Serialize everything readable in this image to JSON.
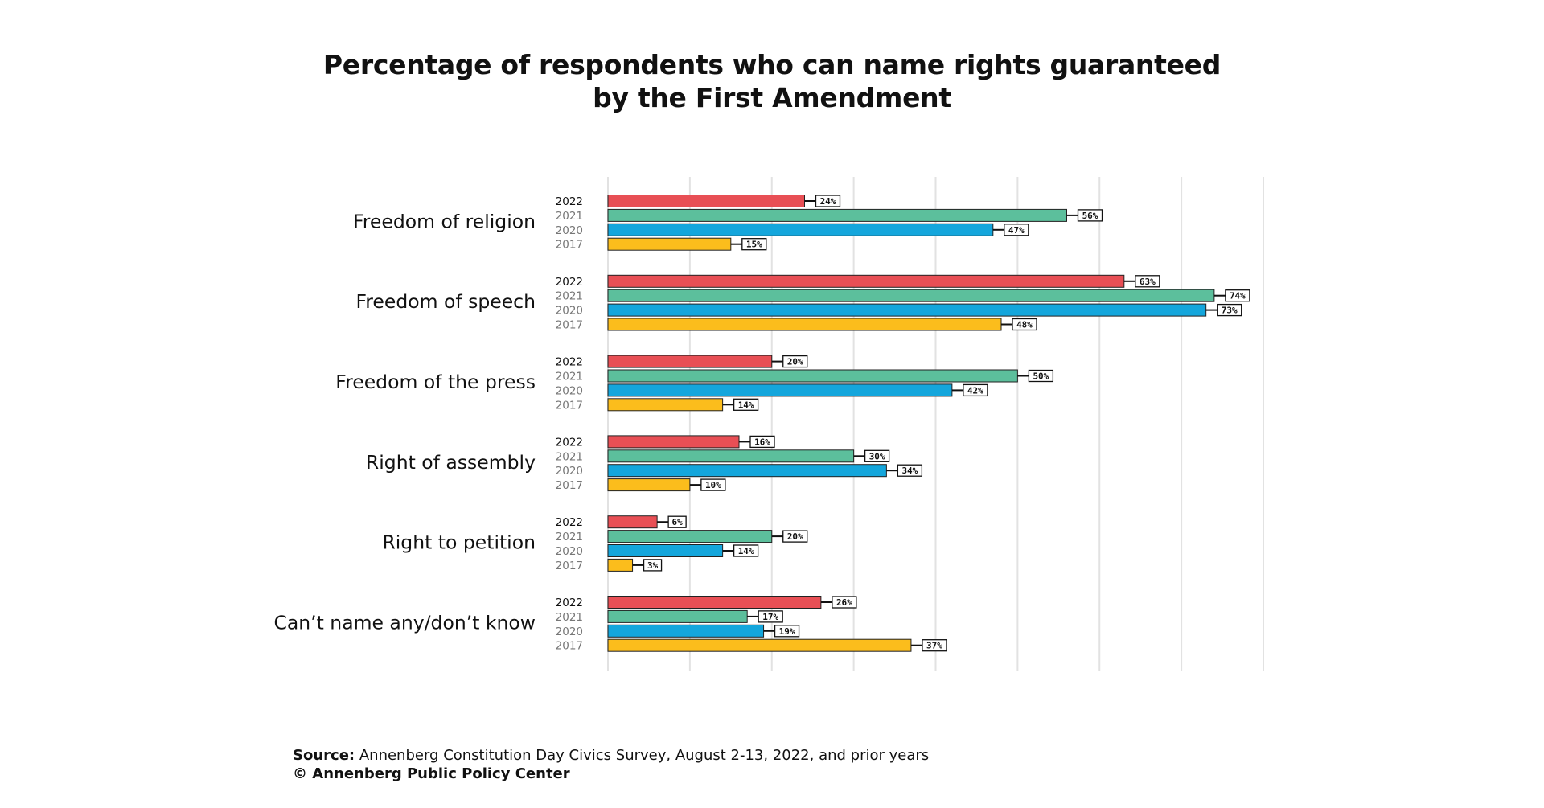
{
  "chart_data": {
    "type": "grouped-hbar",
    "title": "Percentage of respondents who can name rights guaranteed by the First Amendment",
    "categories": [
      "Freedom of religion",
      "Freedom of speech",
      "Freedom of the press",
      "Right of assembly",
      "Right to petition",
      "Can’t name any/don’t know"
    ],
    "series": [
      {
        "name": "2022",
        "color": "#e84f55",
        "values": [
          24,
          63,
          20,
          16,
          6,
          26
        ],
        "value_labels": [
          "24%",
          "63%",
          "20%",
          "16%",
          "6%",
          "26%"
        ]
      },
      {
        "name": "2021",
        "color": "#5cbf9c",
        "values": [
          56,
          74,
          50,
          30,
          20,
          17
        ],
        "value_labels": [
          "56%",
          "74%",
          "50%",
          "30%",
          "20%",
          "17%"
        ]
      },
      {
        "name": "2020",
        "color": "#14a6dc",
        "values": [
          47,
          73,
          42,
          34,
          14,
          19
        ],
        "value_labels": [
          "47%",
          "73%",
          "42%",
          "34%",
          "14%",
          "19%"
        ]
      },
      {
        "name": "2017",
        "color": "#fbbd1c",
        "values": [
          15,
          48,
          14,
          10,
          3,
          37
        ],
        "value_labels": [
          "15%",
          "48%",
          "14%",
          "10%",
          "3%",
          "37%"
        ]
      }
    ],
    "xlim": [
      0,
      80
    ],
    "xticks": [
      0,
      10,
      20,
      30,
      40,
      50,
      60,
      70,
      80
    ],
    "grid": true,
    "source_label": "Source:",
    "source": "Annenberg Constitution Day Civics Survey, August 2-13, 2022, and prior years",
    "copyright": "© Annenberg Public Policy Center"
  }
}
